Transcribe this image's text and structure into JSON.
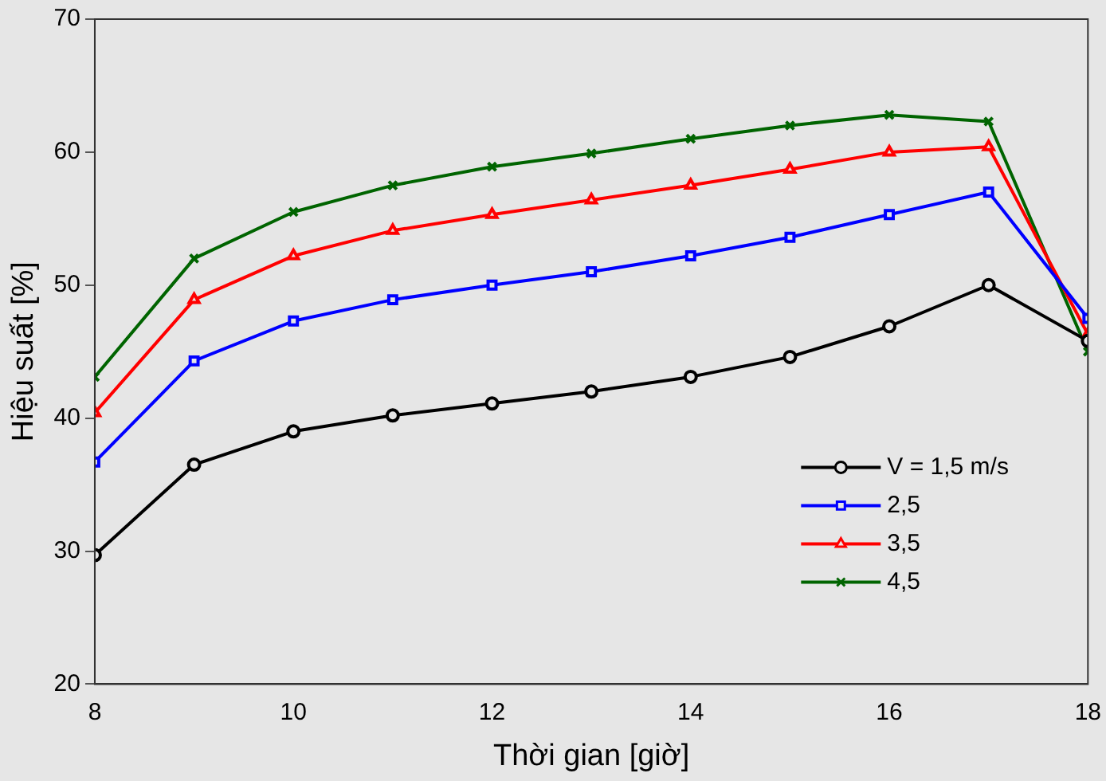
{
  "chart_data": {
    "type": "line",
    "xlabel": "Thời gian [giờ]",
    "ylabel": "Hiệu suất [%]",
    "x": [
      8,
      9,
      10,
      11,
      12,
      13,
      14,
      15,
      16,
      17,
      18
    ],
    "xlim": [
      8,
      18
    ],
    "xticks": [
      8,
      10,
      12,
      14,
      16,
      18
    ],
    "ylim": [
      20,
      70
    ],
    "yticks": [
      20,
      30,
      40,
      50,
      60,
      70
    ],
    "grid": false,
    "legend": "bottom right",
    "line_style": "solid",
    "series": [
      {
        "name": "V = 1,5 m/s",
        "color": "#000000",
        "marker": "circle",
        "values": [
          29.7,
          36.5,
          39,
          40.2,
          41.1,
          42,
          43.1,
          44.6,
          46.9,
          50,
          45.8
        ]
      },
      {
        "name": "2,5",
        "color": "#0000ff",
        "marker": "square",
        "values": [
          36.7,
          44.3,
          47.3,
          48.9,
          50,
          51,
          52.2,
          53.6,
          55.3,
          57,
          47.5
        ]
      },
      {
        "name": "3,5",
        "color": "#ff0000",
        "marker": "triangle",
        "values": [
          40.4,
          48.9,
          52.2,
          54.1,
          55.3,
          56.4,
          57.5,
          58.7,
          60,
          60.4,
          46.3
        ]
      },
      {
        "name": "4,5",
        "color": "#006400",
        "marker": "cross",
        "values": [
          43.1,
          52,
          55.5,
          57.5,
          58.9,
          59.9,
          61,
          62,
          62.8,
          62.3,
          45
        ]
      }
    ]
  }
}
